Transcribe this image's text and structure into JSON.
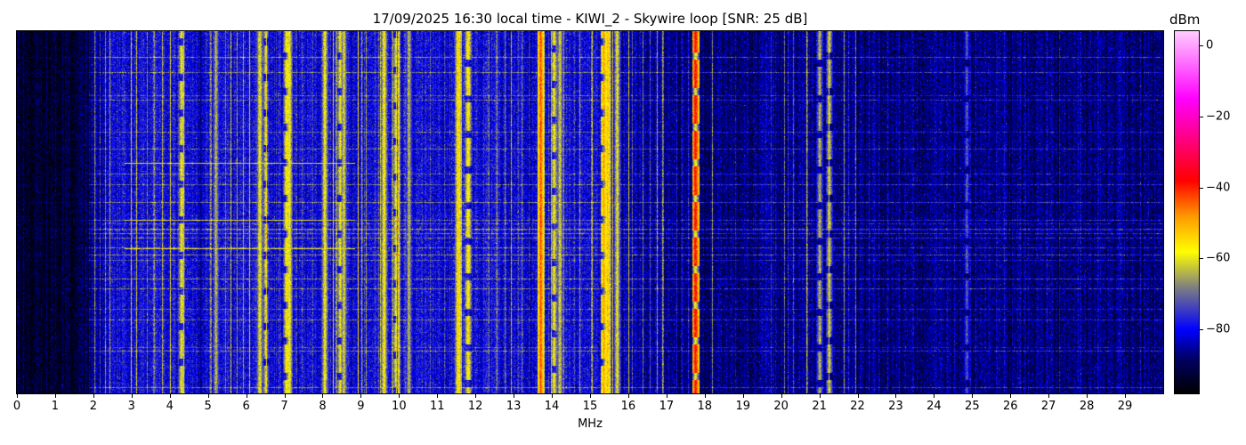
{
  "chart_data": {
    "type": "heatmap",
    "title": "17/09/2025 16:30 local time - KIWI_2 - Skywire loop [SNR: 25 dB]",
    "xlabel": "MHz",
    "ylabel": "",
    "xlim": [
      0,
      30
    ],
    "x_ticks": [
      "0",
      "1",
      "2",
      "3",
      "4",
      "5",
      "6",
      "7",
      "8",
      "9",
      "10",
      "11",
      "12",
      "13",
      "14",
      "15",
      "16",
      "17",
      "18",
      "19",
      "20",
      "21",
      "22",
      "23",
      "24",
      "25",
      "26",
      "27",
      "28",
      "29"
    ],
    "colorbar": {
      "label": "dBm",
      "range": [
        -98,
        4
      ],
      "ticks": [
        "0",
        "−20",
        "−40",
        "−60",
        "−80"
      ],
      "tick_values": [
        0,
        -20,
        -40,
        -60,
        -80
      ],
      "colormap": [
        {
          "value": -98,
          "color": "#000000"
        },
        {
          "value": -88,
          "color": "#000066"
        },
        {
          "value": -80,
          "color": "#0000ff"
        },
        {
          "value": -68,
          "color": "#808080"
        },
        {
          "value": -58,
          "color": "#ffff00"
        },
        {
          "value": -48,
          "color": "#ff9900"
        },
        {
          "value": -38,
          "color": "#ff0000"
        },
        {
          "value": -15,
          "color": "#ff00ff"
        },
        {
          "value": 4,
          "color": "#ffccff"
        }
      ]
    },
    "noise_floor_dbm": [
      {
        "from_mhz": 0,
        "to_mhz": 2,
        "level": -94
      },
      {
        "from_mhz": 2,
        "to_mhz": 16,
        "level": -80
      },
      {
        "from_mhz": 16,
        "to_mhz": 30,
        "level": -87
      }
    ],
    "signals": [
      {
        "mhz": 4.3,
        "level": -57
      },
      {
        "mhz": 5.2,
        "level": -62
      },
      {
        "mhz": 6.35,
        "level": -58
      },
      {
        "mhz": 6.5,
        "level": -60
      },
      {
        "mhz": 7.05,
        "level": -55
      },
      {
        "mhz": 7.12,
        "level": -56
      },
      {
        "mhz": 8.05,
        "level": -57
      },
      {
        "mhz": 8.45,
        "level": -58
      },
      {
        "mhz": 8.55,
        "level": -60
      },
      {
        "mhz": 9.6,
        "level": -56
      },
      {
        "mhz": 9.9,
        "level": -60
      },
      {
        "mhz": 10.25,
        "level": -62
      },
      {
        "mhz": 11.55,
        "level": -52
      },
      {
        "mhz": 11.8,
        "level": -54
      },
      {
        "mhz": 13.7,
        "level": -42
      },
      {
        "mhz": 14.05,
        "level": -57
      },
      {
        "mhz": 14.2,
        "level": -60
      },
      {
        "mhz": 15.35,
        "level": -48
      },
      {
        "mhz": 15.45,
        "level": -50
      },
      {
        "mhz": 15.7,
        "level": -58
      },
      {
        "mhz": 17.75,
        "level": -36
      },
      {
        "mhz": 21.0,
        "level": -62
      },
      {
        "mhz": 21.25,
        "level": -60
      },
      {
        "mhz": 24.85,
        "level": -70
      }
    ]
  }
}
